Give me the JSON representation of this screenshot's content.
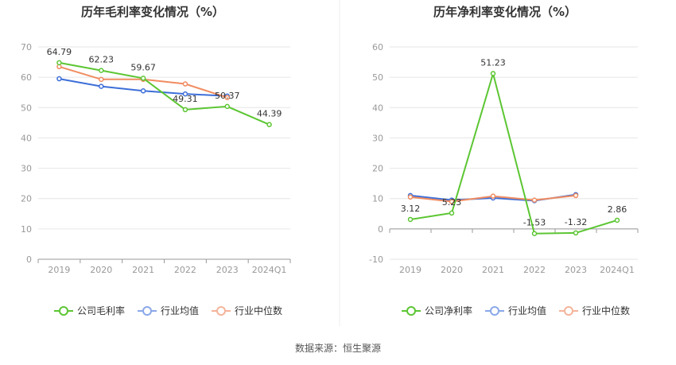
{
  "colors": {
    "company": "#5cc633",
    "industry_avg": "#3d6fd8",
    "industry_median": "#f08c60",
    "legend_avg": "#8aa8e8",
    "legend_median": "#f4b49a",
    "grid": "#e6e6e6",
    "axis": "#999999"
  },
  "source": "数据来源：恒生聚源",
  "chart_data": [
    {
      "type": "line",
      "title": "历年毛利率变化情况（%）",
      "categories": [
        "2019",
        "2020",
        "2021",
        "2022",
        "2023",
        "2024Q1"
      ],
      "ylim": [
        0,
        70
      ],
      "yticks": [
        0,
        10,
        20,
        30,
        40,
        50,
        60,
        70
      ],
      "grid": true,
      "legend_position": "bottom",
      "series": [
        {
          "name": "公司毛利率",
          "values": [
            64.79,
            62.23,
            59.67,
            49.31,
            50.37,
            44.39
          ],
          "labels": [
            "64.79",
            "62.23",
            "59.67",
            "49.31",
            "50.37",
            "44.39"
          ]
        },
        {
          "name": "行业均值",
          "values": [
            59.5,
            57.0,
            55.5,
            54.5,
            53.8,
            null
          ]
        },
        {
          "name": "行业中位数",
          "values": [
            63.5,
            59.3,
            59.3,
            57.8,
            53.3,
            null
          ]
        }
      ]
    },
    {
      "type": "line",
      "title": "历年净利率变化情况（%）",
      "categories": [
        "2019",
        "2020",
        "2021",
        "2022",
        "2023",
        "2024Q1"
      ],
      "ylim": [
        -10,
        60
      ],
      "yticks": [
        -10,
        0,
        10,
        20,
        30,
        40,
        50,
        60
      ],
      "grid": true,
      "legend_position": "bottom",
      "series": [
        {
          "name": "公司净利率",
          "values": [
            3.12,
            5.23,
            51.23,
            -1.53,
            -1.32,
            2.86
          ],
          "labels": [
            "3.12",
            "5.23",
            "51.23",
            "-1.53",
            "-1.32",
            "2.86"
          ]
        },
        {
          "name": "行业均值",
          "values": [
            11.0,
            9.5,
            10.2,
            9.3,
            11.3,
            null
          ]
        },
        {
          "name": "行业中位数",
          "values": [
            10.5,
            9.0,
            10.8,
            9.5,
            11.0,
            null
          ]
        }
      ]
    }
  ]
}
